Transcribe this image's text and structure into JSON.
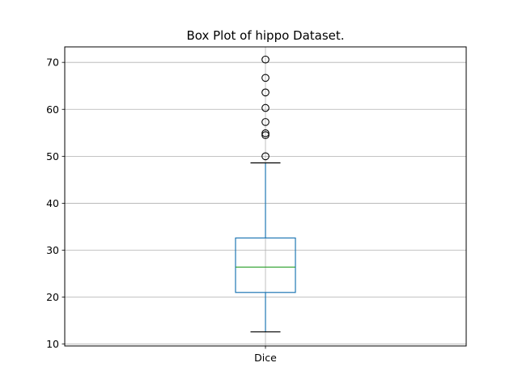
{
  "chart_data": {
    "type": "box",
    "title": "Box Plot of hippo Dataset.",
    "xlabel": "",
    "ylabel": "",
    "categories": [
      "Dice"
    ],
    "boxes": [
      {
        "name": "Dice",
        "whisker_low": 12.6,
        "q1": 21.0,
        "median": 26.4,
        "q3": 32.6,
        "whisker_high": 48.6,
        "outliers": [
          50.0,
          54.5,
          54.9,
          57.3,
          60.3,
          63.6,
          66.7,
          70.6
        ]
      }
    ],
    "ylim": [
      9.6,
      73.3
    ],
    "yticks": [
      10,
      20,
      30,
      40,
      50,
      60,
      70
    ],
    "grid": true,
    "colors": {
      "box": "#1f77b4",
      "median": "#2ca02c",
      "whisker_cap": "#000000",
      "outlier": "#000000",
      "grid": "#b0b0b0"
    }
  }
}
